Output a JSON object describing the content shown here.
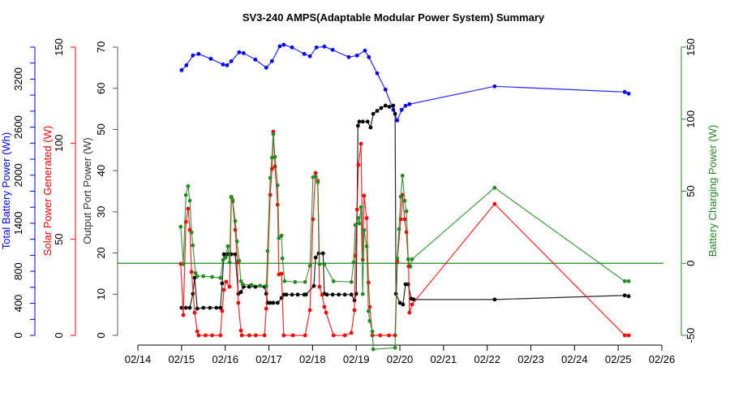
{
  "chart_data": {
    "type": "line",
    "title": "SV3-240 AMPS(Adaptable Modular Power System) Summary",
    "x_axis": {
      "unit": "day of February",
      "range": [
        14,
        26
      ],
      "ticks": [
        14,
        15,
        16,
        17,
        18,
        19,
        20,
        21,
        22,
        23,
        24,
        25,
        26
      ],
      "tick_labels": [
        "02/14",
        "02/15",
        "02/16",
        "02/17",
        "02/18",
        "02/19",
        "02/20",
        "02/21",
        "02/22",
        "02/23",
        "02/24",
        "02/25",
        "02/26"
      ]
    },
    "axes": {
      "battery": {
        "label": "Total Battery Power (Wh)",
        "color": "#0000ff",
        "side": "left-outer",
        "range": [
          0,
          3600
        ],
        "minor_step": 200,
        "tick_labels": [
          0,
          400,
          800,
          1400,
          2000,
          2600,
          3200
        ]
      },
      "solar": {
        "label": "Solar Power Generated (W)",
        "color": "#ff0000",
        "side": "left-middle",
        "range": [
          0,
          150
        ],
        "tick_labels": [
          0,
          50,
          100,
          150
        ]
      },
      "output": {
        "label": "Output Port Power (W)",
        "color": "#000000",
        "side": "left-inner",
        "range": [
          0,
          70
        ],
        "tick_labels": [
          0,
          10,
          20,
          30,
          40,
          50,
          60,
          70
        ]
      },
      "charging": {
        "label": "Battery Charging Power (W)",
        "color": "#228B22",
        "side": "right",
        "range": [
          -50,
          150
        ],
        "tick_labels": [
          -50,
          0,
          50,
          100,
          150
        ],
        "reference_line": 0
      }
    },
    "series": [
      {
        "name": "Total Battery Power",
        "axis": "battery",
        "color": "#0000ff",
        "x": [
          15.0,
          15.11,
          15.26,
          15.39,
          15.67,
          15.95,
          16.04,
          16.14,
          16.32,
          16.42,
          16.69,
          16.94,
          17.07,
          17.25,
          17.34,
          17.53,
          17.81,
          17.94,
          18.09,
          18.27,
          18.46,
          18.83,
          19.02,
          19.2,
          19.29,
          19.48,
          19.67,
          19.85,
          19.94,
          20.04,
          20.13,
          20.22,
          22.17,
          25.15,
          25.24
        ],
        "y": [
          3312,
          3373,
          3495,
          3515,
          3454,
          3383,
          3373,
          3424,
          3535,
          3525,
          3444,
          3343,
          3424,
          3610,
          3630,
          3596,
          3515,
          3485,
          3596,
          3606,
          3566,
          3475,
          3495,
          3556,
          3475,
          3272,
          3069,
          2816,
          2684,
          2816,
          2867,
          2887,
          3110,
          3039,
          3019
        ]
      },
      {
        "name": "Output Port Power",
        "axis": "output",
        "color": "#000000",
        "x": [
          15.0,
          15.1,
          15.19,
          15.26,
          15.3,
          15.36,
          15.5,
          15.65,
          15.8,
          15.89,
          15.93,
          15.97,
          16.04,
          16.1,
          16.14,
          16.23,
          16.3,
          16.36,
          16.42,
          16.55,
          16.69,
          16.9,
          16.94,
          16.97,
          17.03,
          17.1,
          17.2,
          17.29,
          17.34,
          17.4,
          17.53,
          17.66,
          17.81,
          17.85,
          18.03,
          18.07,
          18.14,
          18.24,
          18.27,
          18.33,
          18.46,
          18.6,
          18.74,
          18.89,
          18.96,
          19.0,
          19.04,
          19.07,
          19.15,
          19.26,
          19.33,
          19.39,
          19.48,
          19.57,
          19.67,
          19.76,
          19.85,
          19.89,
          19.91,
          20.0,
          20.07,
          20.13,
          20.19,
          20.26,
          20.32,
          22.17,
          25.15,
          25.24
        ],
        "y": [
          6.7,
          6.7,
          6.7,
          10.1,
          14.0,
          6.5,
          6.7,
          6.7,
          6.7,
          6.7,
          12.6,
          19.7,
          19.7,
          19.7,
          19.7,
          19.7,
          10.1,
          10.5,
          11.8,
          11.8,
          11.8,
          11.8,
          10.1,
          7.9,
          7.9,
          7.9,
          7.9,
          9.1,
          9.9,
          9.9,
          9.9,
          9.9,
          9.9,
          9.9,
          12.0,
          18.9,
          19.9,
          19.9,
          10.1,
          9.9,
          9.9,
          9.9,
          9.9,
          9.9,
          8.5,
          10.1,
          50.9,
          51.9,
          51.9,
          51.9,
          50.5,
          53.8,
          54.5,
          55.2,
          55.8,
          55.5,
          55.8,
          53.8,
          10.1,
          7.9,
          7.5,
          12.4,
          12.4,
          8.9,
          8.7,
          8.7,
          9.7,
          9.5
        ]
      },
      {
        "name": "Solar Power Generated",
        "axis": "solar",
        "color": "#ff0000",
        "x": [
          14.98,
          15.04,
          15.1,
          15.15,
          15.19,
          15.23,
          15.3,
          15.36,
          15.39,
          15.55,
          15.7,
          15.89,
          15.93,
          15.97,
          16.02,
          16.1,
          16.14,
          16.17,
          16.23,
          16.28,
          16.3,
          16.36,
          16.38,
          16.55,
          16.7,
          16.9,
          16.94,
          17.03,
          17.07,
          17.1,
          17.14,
          17.2,
          17.23,
          17.29,
          17.34,
          17.55,
          17.83,
          17.94,
          18.01,
          18.07,
          18.12,
          18.16,
          18.22,
          18.27,
          18.31,
          18.48,
          18.74,
          18.89,
          18.96,
          18.98,
          19.02,
          19.05,
          19.11,
          19.15,
          19.18,
          19.24,
          19.28,
          19.31,
          19.37,
          19.55,
          19.75,
          19.89,
          19.94,
          20.02,
          20.06,
          20.11,
          20.15,
          20.2,
          20.22,
          20.28,
          22.17,
          25.15,
          25.24
        ],
        "y": [
          37.2,
          10.6,
          59.1,
          65.9,
          54.9,
          33.0,
          11.8,
          2.1,
          0,
          0,
          0,
          0,
          12.7,
          23.7,
          27.9,
          25.3,
          71.8,
          69.7,
          54.9,
          38.0,
          16.9,
          2.5,
          0,
          0,
          0,
          0,
          13.9,
          73.1,
          86.6,
          106.0,
          87.9,
          68.0,
          31.7,
          32.1,
          0,
          0,
          0,
          13.1,
          60.4,
          84.5,
          80.3,
          25.3,
          21.1,
          14.8,
          11.8,
          0,
          0,
          1.3,
          13.1,
          41.4,
          65.5,
          88.7,
          99.7,
          39.3,
          72.7,
          61.0,
          27.5,
          14.8,
          0,
          0,
          0,
          0,
          38.4,
          60.4,
          73.1,
          60.4,
          53.7,
          35.9,
          11.8,
          16.1,
          68.4,
          0,
          0
        ]
      },
      {
        "name": "Battery Charging Power",
        "axis": "charging",
        "color": "#228B22",
        "x": [
          14.98,
          15.04,
          15.1,
          15.15,
          15.19,
          15.23,
          15.26,
          15.32,
          15.36,
          15.5,
          15.7,
          15.89,
          15.95,
          16.01,
          16.06,
          16.1,
          16.14,
          16.17,
          16.23,
          16.27,
          16.32,
          16.36,
          16.4,
          16.6,
          16.8,
          16.94,
          16.97,
          17.03,
          17.07,
          17.1,
          17.14,
          17.2,
          17.23,
          17.29,
          17.31,
          17.36,
          17.6,
          17.83,
          17.94,
          18.01,
          18.07,
          18.12,
          18.16,
          18.27,
          18.48,
          18.89,
          18.94,
          18.98,
          19.04,
          19.07,
          19.11,
          19.15,
          19.18,
          19.24,
          19.28,
          19.31,
          19.37,
          19.39,
          19.89,
          19.94,
          19.98,
          20.02,
          20.06,
          20.11,
          20.15,
          20.19,
          20.24,
          20.28,
          22.17,
          25.15,
          25.24
        ],
        "y": [
          25.4,
          -0.6,
          47.3,
          53.5,
          43.4,
          21.4,
          12.4,
          -6.8,
          -9.0,
          -9.0,
          -9.5,
          -10.1,
          2.3,
          3.9,
          11.8,
          0.6,
          46.2,
          43.9,
          29.3,
          15.2,
          1.7,
          -12.4,
          -14.6,
          -15.0,
          -15.5,
          -15.8,
          8.5,
          59.2,
          73.2,
          89.6,
          73.8,
          54.1,
          17.5,
          19.2,
          3.4,
          -12.4,
          -13.0,
          -13.0,
          -1.7,
          59.7,
          60.3,
          56.3,
          -0.6,
          -0.6,
          -12.4,
          -13.0,
          0.6,
          26.5,
          31.5,
          27.6,
          38.9,
          -21.4,
          23.1,
          11.8,
          -33.2,
          -40.0,
          -47.3,
          -59.7,
          -58.6,
          3.4,
          23.7,
          46.2,
          60.8,
          43.4,
          36.1,
          2.8,
          -2.3,
          2.8,
          52.4,
          -12.4,
          -12.4
        ]
      }
    ]
  }
}
